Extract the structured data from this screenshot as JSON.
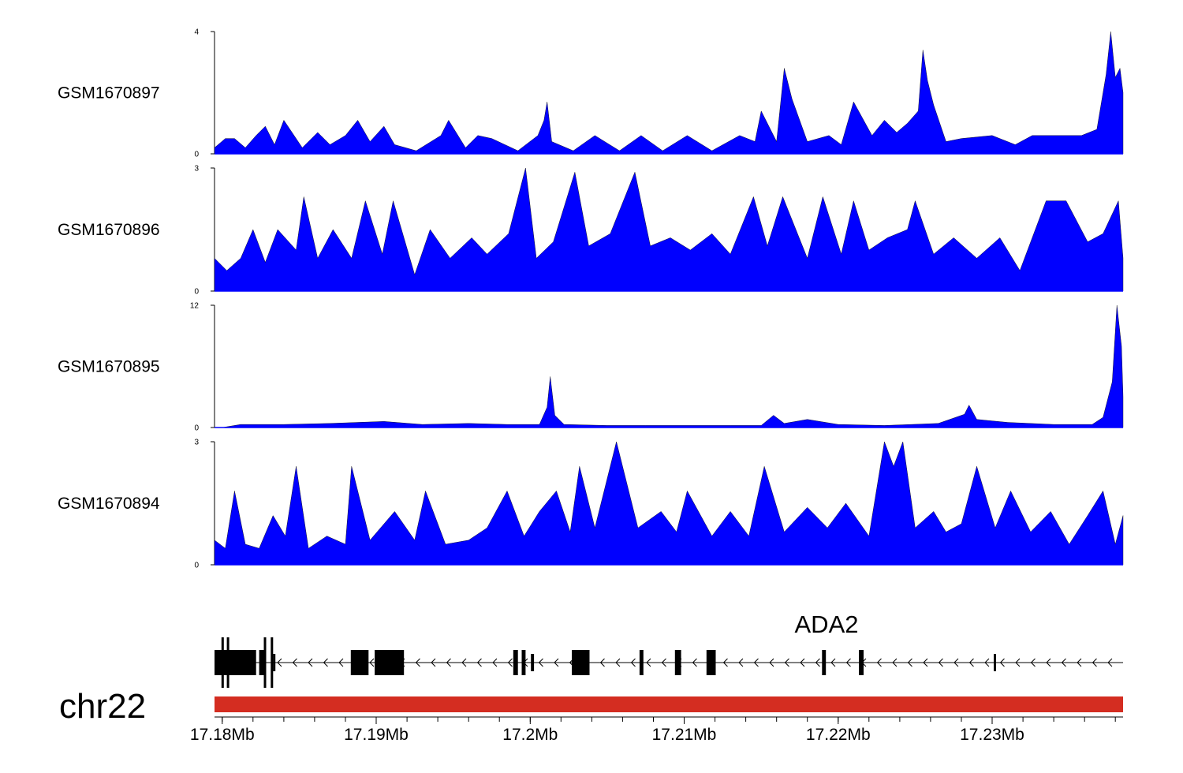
{
  "chart_data": {
    "type": "area",
    "title": "",
    "xlabel": "",
    "ylabel": "",
    "x_unit": "Mb",
    "xlim": [
      17.1795,
      17.2385
    ],
    "legend": "none",
    "grid": false,
    "fill_color": "#0000ff",
    "stroke_color": "#000000",
    "tracks": [
      {
        "name": "GSM1670897",
        "ylim": [
          0,
          4
        ],
        "ticks": [
          "0",
          "4"
        ],
        "points": [
          [
            17.1795,
            0.2
          ],
          [
            17.1802,
            0.5
          ],
          [
            17.1808,
            0.5
          ],
          [
            17.1815,
            0.2
          ],
          [
            17.1822,
            0.6
          ],
          [
            17.1828,
            0.9
          ],
          [
            17.1834,
            0.3
          ],
          [
            17.184,
            1.1
          ],
          [
            17.1852,
            0.2
          ],
          [
            17.1862,
            0.7
          ],
          [
            17.187,
            0.3
          ],
          [
            17.188,
            0.6
          ],
          [
            17.1888,
            1.1
          ],
          [
            17.1896,
            0.4
          ],
          [
            17.1905,
            0.9
          ],
          [
            17.1912,
            0.3
          ],
          [
            17.1926,
            0.1
          ],
          [
            17.1942,
            0.6
          ],
          [
            17.1947,
            1.1
          ],
          [
            17.1958,
            0.2
          ],
          [
            17.1966,
            0.6
          ],
          [
            17.1975,
            0.5
          ],
          [
            17.1992,
            0.1
          ],
          [
            17.2005,
            0.6
          ],
          [
            17.2009,
            1.1
          ],
          [
            17.2011,
            1.7
          ],
          [
            17.2014,
            0.4
          ],
          [
            17.2028,
            0.1
          ],
          [
            17.2042,
            0.6
          ],
          [
            17.2058,
            0.1
          ],
          [
            17.2072,
            0.6
          ],
          [
            17.2086,
            0.1
          ],
          [
            17.2102,
            0.6
          ],
          [
            17.2118,
            0.1
          ],
          [
            17.2136,
            0.6
          ],
          [
            17.2146,
            0.4
          ],
          [
            17.215,
            1.4
          ],
          [
            17.216,
            0.4
          ],
          [
            17.2165,
            2.8
          ],
          [
            17.217,
            1.8
          ],
          [
            17.218,
            0.4
          ],
          [
            17.2194,
            0.6
          ],
          [
            17.2202,
            0.3
          ],
          [
            17.221,
            1.7
          ],
          [
            17.2222,
            0.6
          ],
          [
            17.223,
            1.1
          ],
          [
            17.2238,
            0.7
          ],
          [
            17.2245,
            1.0
          ],
          [
            17.2252,
            1.4
          ],
          [
            17.2255,
            3.4
          ],
          [
            17.2258,
            2.4
          ],
          [
            17.2262,
            1.6
          ],
          [
            17.227,
            0.4
          ],
          [
            17.228,
            0.5
          ],
          [
            17.23,
            0.6
          ],
          [
            17.2315,
            0.3
          ],
          [
            17.2326,
            0.6
          ],
          [
            17.234,
            0.6
          ],
          [
            17.2358,
            0.6
          ],
          [
            17.2368,
            0.8
          ],
          [
            17.2374,
            2.6
          ],
          [
            17.2377,
            4.0
          ],
          [
            17.238,
            2.5
          ],
          [
            17.2383,
            2.8
          ],
          [
            17.2385,
            2.0
          ]
        ]
      },
      {
        "name": "GSM1670896",
        "ylim": [
          0,
          3
        ],
        "ticks": [
          "0",
          "3"
        ],
        "points": [
          [
            17.1795,
            0.8
          ],
          [
            17.1803,
            0.5
          ],
          [
            17.1812,
            0.8
          ],
          [
            17.182,
            1.5
          ],
          [
            17.1828,
            0.7
          ],
          [
            17.1836,
            1.5
          ],
          [
            17.1848,
            1.0
          ],
          [
            17.1853,
            2.3
          ],
          [
            17.1862,
            0.8
          ],
          [
            17.1872,
            1.5
          ],
          [
            17.1884,
            0.8
          ],
          [
            17.1893,
            2.2
          ],
          [
            17.1904,
            0.9
          ],
          [
            17.1911,
            2.2
          ],
          [
            17.1925,
            0.4
          ],
          [
            17.1935,
            1.5
          ],
          [
            17.1948,
            0.8
          ],
          [
            17.1962,
            1.3
          ],
          [
            17.1972,
            0.9
          ],
          [
            17.1986,
            1.4
          ],
          [
            17.1997,
            3.0
          ],
          [
            17.2004,
            0.8
          ],
          [
            17.2015,
            1.2
          ],
          [
            17.2029,
            2.9
          ],
          [
            17.2038,
            1.1
          ],
          [
            17.2052,
            1.4
          ],
          [
            17.2068,
            2.9
          ],
          [
            17.2078,
            1.1
          ],
          [
            17.2091,
            1.3
          ],
          [
            17.2104,
            1.0
          ],
          [
            17.2118,
            1.4
          ],
          [
            17.213,
            0.9
          ],
          [
            17.2145,
            2.3
          ],
          [
            17.2154,
            1.1
          ],
          [
            17.2164,
            2.3
          ],
          [
            17.218,
            0.8
          ],
          [
            17.219,
            2.3
          ],
          [
            17.2202,
            0.9
          ],
          [
            17.221,
            2.2
          ],
          [
            17.222,
            1.0
          ],
          [
            17.2232,
            1.3
          ],
          [
            17.2245,
            1.5
          ],
          [
            17.225,
            2.2
          ],
          [
            17.2262,
            0.9
          ],
          [
            17.2275,
            1.3
          ],
          [
            17.229,
            0.8
          ],
          [
            17.2305,
            1.3
          ],
          [
            17.2318,
            0.5
          ],
          [
            17.2335,
            2.2
          ],
          [
            17.2348,
            2.2
          ],
          [
            17.2362,
            1.2
          ],
          [
            17.2372,
            1.4
          ],
          [
            17.2382,
            2.2
          ],
          [
            17.2385,
            0.8
          ]
        ]
      },
      {
        "name": "GSM1670895",
        "ylim": [
          0,
          12
        ],
        "ticks": [
          "0",
          "12"
        ],
        "points": [
          [
            17.18,
            0.0
          ],
          [
            17.1812,
            0.3
          ],
          [
            17.184,
            0.3
          ],
          [
            17.187,
            0.4
          ],
          [
            17.1905,
            0.6
          ],
          [
            17.193,
            0.3
          ],
          [
            17.196,
            0.4
          ],
          [
            17.1985,
            0.3
          ],
          [
            17.2006,
            0.3
          ],
          [
            17.2011,
            2.0
          ],
          [
            17.2013,
            5.0
          ],
          [
            17.2016,
            1.2
          ],
          [
            17.2022,
            0.3
          ],
          [
            17.205,
            0.2
          ],
          [
            17.2075,
            0.2
          ],
          [
            17.21,
            0.2
          ],
          [
            17.213,
            0.2
          ],
          [
            17.215,
            0.2
          ],
          [
            17.2158,
            1.2
          ],
          [
            17.2165,
            0.4
          ],
          [
            17.218,
            0.8
          ],
          [
            17.22,
            0.3
          ],
          [
            17.223,
            0.2
          ],
          [
            17.2265,
            0.4
          ],
          [
            17.2282,
            1.3
          ],
          [
            17.2285,
            2.2
          ],
          [
            17.229,
            0.8
          ],
          [
            17.231,
            0.5
          ],
          [
            17.234,
            0.3
          ],
          [
            17.2365,
            0.3
          ],
          [
            17.2372,
            1.0
          ],
          [
            17.2378,
            4.5
          ],
          [
            17.2381,
            12.0
          ],
          [
            17.2384,
            8.0
          ],
          [
            17.2385,
            3.0
          ]
        ]
      },
      {
        "name": "GSM1670894",
        "ylim": [
          0,
          3
        ],
        "ticks": [
          "0",
          "3"
        ],
        "points": [
          [
            17.1795,
            0.6
          ],
          [
            17.1802,
            0.4
          ],
          [
            17.1808,
            1.8
          ],
          [
            17.1815,
            0.5
          ],
          [
            17.1824,
            0.4
          ],
          [
            17.1833,
            1.2
          ],
          [
            17.1841,
            0.7
          ],
          [
            17.1848,
            2.4
          ],
          [
            17.1856,
            0.4
          ],
          [
            17.1868,
            0.7
          ],
          [
            17.188,
            0.5
          ],
          [
            17.1884,
            2.4
          ],
          [
            17.1896,
            0.6
          ],
          [
            17.1912,
            1.3
          ],
          [
            17.1925,
            0.6
          ],
          [
            17.1932,
            1.8
          ],
          [
            17.1945,
            0.5
          ],
          [
            17.196,
            0.6
          ],
          [
            17.1972,
            0.9
          ],
          [
            17.1985,
            1.8
          ],
          [
            17.1996,
            0.7
          ],
          [
            17.2006,
            1.3
          ],
          [
            17.2017,
            1.8
          ],
          [
            17.2026,
            0.8
          ],
          [
            17.2032,
            2.4
          ],
          [
            17.2042,
            0.9
          ],
          [
            17.2056,
            3.0
          ],
          [
            17.207,
            0.9
          ],
          [
            17.2085,
            1.3
          ],
          [
            17.2095,
            0.8
          ],
          [
            17.2102,
            1.8
          ],
          [
            17.2118,
            0.7
          ],
          [
            17.213,
            1.3
          ],
          [
            17.2142,
            0.7
          ],
          [
            17.2152,
            2.4
          ],
          [
            17.2165,
            0.8
          ],
          [
            17.218,
            1.4
          ],
          [
            17.2193,
            0.9
          ],
          [
            17.2205,
            1.5
          ],
          [
            17.222,
            0.7
          ],
          [
            17.223,
            3.0
          ],
          [
            17.2236,
            2.4
          ],
          [
            17.2242,
            3.0
          ],
          [
            17.225,
            0.9
          ],
          [
            17.2262,
            1.3
          ],
          [
            17.227,
            0.8
          ],
          [
            17.228,
            1.0
          ],
          [
            17.229,
            2.4
          ],
          [
            17.2302,
            0.9
          ],
          [
            17.2312,
            1.8
          ],
          [
            17.2325,
            0.8
          ],
          [
            17.2338,
            1.3
          ],
          [
            17.235,
            0.5
          ],
          [
            17.2362,
            1.2
          ],
          [
            17.2372,
            1.8
          ],
          [
            17.238,
            0.5
          ],
          [
            17.2385,
            1.2
          ]
        ]
      }
    ],
    "gene_track": {
      "gene": "ADA2",
      "strand": "-",
      "color": "#000000",
      "exons": [
        [
          17.1795,
          17.1822
        ],
        [
          17.1824,
          17.18275
        ],
        [
          17.1833,
          17.18345
        ],
        [
          17.18835,
          17.1895
        ],
        [
          17.1899,
          17.1918
        ],
        [
          17.1989,
          17.1992
        ],
        [
          17.19945,
          17.1997
        ],
        [
          17.20005,
          17.20025
        ],
        [
          17.2027,
          17.20385
        ],
        [
          17.2071,
          17.20735
        ],
        [
          17.2094,
          17.2098
        ],
        [
          17.21145,
          17.21205
        ],
        [
          17.21895,
          17.2192
        ],
        [
          17.22135,
          17.22165
        ],
        [
          17.2301,
          17.2302
        ]
      ],
      "utr_exons": [
        [
          17.1833,
          17.18345
        ],
        [
          17.20005,
          17.20025
        ],
        [
          17.2301,
          17.2302
        ]
      ]
    },
    "ideogram": {
      "chromosome": "chr22",
      "color": "#d42d21"
    },
    "x_ticks": [
      {
        "value": 17.18,
        "label": "17.18Mb"
      },
      {
        "value": 17.19,
        "label": "17.19Mb"
      },
      {
        "value": 17.2,
        "label": "17.2Mb"
      },
      {
        "value": 17.21,
        "label": "17.21Mb"
      },
      {
        "value": 17.22,
        "label": "17.22Mb"
      },
      {
        "value": 17.23,
        "label": "17.23Mb"
      }
    ]
  }
}
